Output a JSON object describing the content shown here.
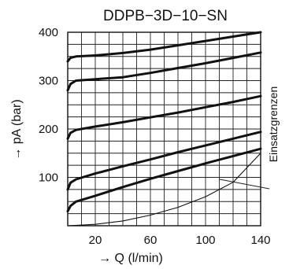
{
  "chart_data": {
    "type": "line",
    "title": "DDPB−3D−10−SN",
    "xlabel": "→ Q (l/min)",
    "ylabel": "→ pA (bar)",
    "xlim": [
      0,
      140
    ],
    "ylim": [
      0,
      400
    ],
    "x_ticks": [
      20,
      60,
      100,
      140
    ],
    "y_ticks": [
      100,
      200,
      300,
      400
    ],
    "x_grid_step": 10,
    "y_grid_step": 25,
    "grid": true,
    "annotation": "Einsatzgrenzen",
    "series": [
      {
        "role": "pressure-curve",
        "points": [
          [
            0,
            340
          ],
          [
            2,
            347
          ],
          [
            6,
            350
          ],
          [
            20,
            352
          ],
          [
            40,
            357
          ],
          [
            60,
            364
          ],
          [
            80,
            373
          ],
          [
            100,
            382
          ],
          [
            120,
            391
          ],
          [
            140,
            400
          ]
        ]
      },
      {
        "role": "pressure-curve",
        "points": [
          [
            0,
            280
          ],
          [
            2,
            293
          ],
          [
            6,
            300
          ],
          [
            20,
            303
          ],
          [
            40,
            307
          ],
          [
            60,
            316
          ],
          [
            80,
            326
          ],
          [
            100,
            336
          ],
          [
            120,
            347
          ],
          [
            140,
            358
          ]
        ]
      },
      {
        "role": "pressure-curve",
        "points": [
          [
            0,
            180
          ],
          [
            2,
            192
          ],
          [
            6,
            198
          ],
          [
            20,
            205
          ],
          [
            40,
            214
          ],
          [
            60,
            224
          ],
          [
            80,
            234
          ],
          [
            100,
            245
          ],
          [
            120,
            256
          ],
          [
            140,
            268
          ]
        ]
      },
      {
        "role": "pressure-curve",
        "points": [
          [
            0,
            75
          ],
          [
            2,
            89
          ],
          [
            6,
            96
          ],
          [
            20,
            108
          ],
          [
            40,
            123
          ],
          [
            60,
            137
          ],
          [
            80,
            152
          ],
          [
            100,
            166
          ],
          [
            120,
            180
          ],
          [
            140,
            194
          ]
        ]
      },
      {
        "role": "pressure-curve",
        "points": [
          [
            0,
            30
          ],
          [
            2,
            41
          ],
          [
            6,
            50
          ],
          [
            20,
            62
          ],
          [
            40,
            80
          ],
          [
            60,
            97
          ],
          [
            80,
            113
          ],
          [
            100,
            129
          ],
          [
            120,
            144
          ],
          [
            140,
            159
          ]
        ]
      },
      {
        "role": "limit-curve",
        "points": [
          [
            0,
            0
          ],
          [
            20,
            3
          ],
          [
            40,
            10
          ],
          [
            60,
            22
          ],
          [
            80,
            38
          ],
          [
            100,
            60
          ],
          [
            120,
            90
          ],
          [
            140,
            150
          ]
        ]
      }
    ]
  }
}
